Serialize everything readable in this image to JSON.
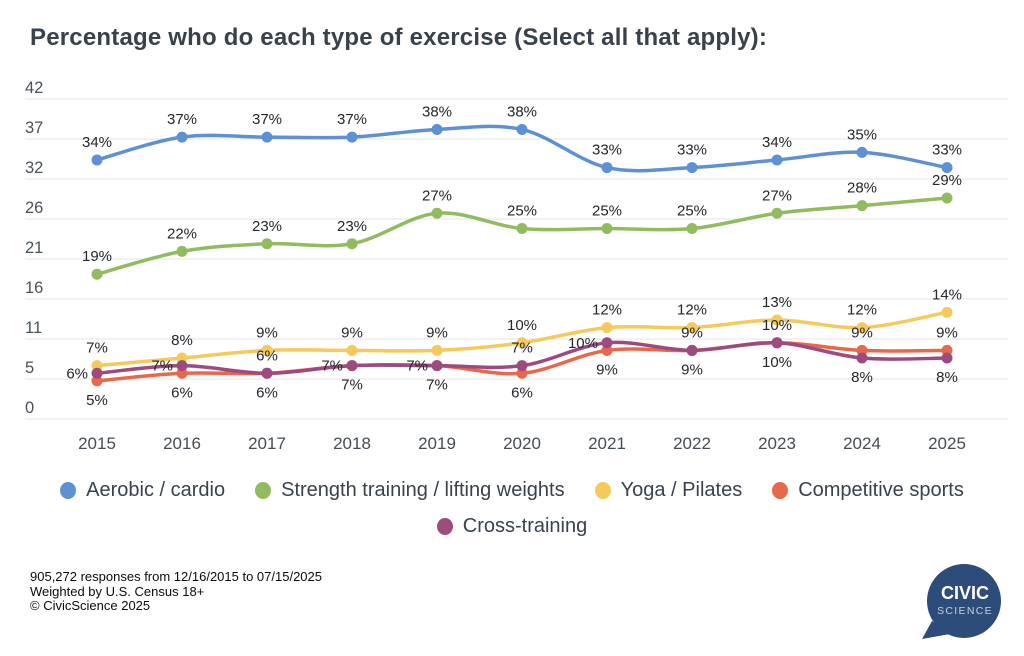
{
  "title": "Percentage who do each type of exercise (Select all that apply):",
  "footer": {
    "line1": "905,272 responses from 12/16/2015 to 07/15/2025",
    "line2": "Weighted by U.S. Census 18+",
    "line3": "© CivicScience 2025"
  },
  "logo": {
    "line1": "CIVIC",
    "line2": "SCIENCE",
    "color": "#2d4c7a",
    "name": "civicscience-logo"
  },
  "colors": {
    "grid": "#e4e6e8",
    "tick_text": "#49525c",
    "data_label": "#23272b",
    "background": "#ffffff"
  },
  "chart_data": {
    "type": "line",
    "title": "Percentage who do each type of exercise (Select all that apply):",
    "x_categories": [
      "2015",
      "2016",
      "2017",
      "2018",
      "2019",
      "2020",
      "2021",
      "2022",
      "2023",
      "2024",
      "2025"
    ],
    "y_ticks": [
      {
        "label": "42",
        "value": 42
      },
      {
        "label": "37",
        "value": 36.75
      },
      {
        "label": "32",
        "value": 31.5
      },
      {
        "label": "26",
        "value": 26.25
      },
      {
        "label": "21",
        "value": 21
      },
      {
        "label": "16",
        "value": 15.75
      },
      {
        "label": "11",
        "value": 10.5
      },
      {
        "label": "5",
        "value": 5.25
      },
      {
        "label": "0",
        "value": 0
      }
    ],
    "ylim": [
      0,
      42
    ],
    "grid": true,
    "legend_position": "bottom",
    "value_suffix": "%",
    "series": [
      {
        "name": "Aerobic / cardio",
        "slug": "aerobic-cardio",
        "color": "#5e90d6",
        "values": [
          34,
          37,
          37,
          37,
          38,
          38,
          33,
          33,
          34,
          35,
          33
        ],
        "label_placement": [
          "above",
          "above",
          "above",
          "above",
          "above",
          "above",
          "above",
          "above",
          "above",
          "above",
          "above"
        ]
      },
      {
        "name": "Strength training / lifting weights",
        "slug": "strength-training",
        "color": "#90bc5f",
        "values": [
          19,
          22,
          23,
          23,
          27,
          25,
          25,
          25,
          27,
          28,
          29
        ],
        "label_placement": [
          "above",
          "above",
          "above",
          "above",
          "above",
          "above",
          "above",
          "above",
          "above",
          "above",
          "above"
        ]
      },
      {
        "name": "Yoga / Pilates",
        "slug": "yoga-pilates",
        "color": "#f5c95b",
        "values": [
          7,
          8,
          9,
          9,
          9,
          10,
          12,
          12,
          13,
          12,
          14
        ],
        "label_placement": [
          "above",
          "above",
          "above",
          "above",
          "above",
          "above",
          "above",
          "above",
          "above",
          "above",
          "above"
        ]
      },
      {
        "name": "Competitive sports",
        "slug": "competitive-sports",
        "color": "#e8684c",
        "values": [
          5,
          6,
          6,
          7,
          7,
          6,
          9,
          9,
          10,
          9,
          9
        ],
        "label_placement": [
          "below",
          "below",
          "below",
          "below",
          "below",
          "below",
          "below",
          "above",
          "above",
          "above",
          "above"
        ]
      },
      {
        "name": "Cross-training",
        "slug": "cross-training",
        "color": "#9d4b7f",
        "values": [
          6,
          7,
          6,
          7,
          7,
          7,
          10,
          9,
          10,
          8,
          8
        ],
        "label_placement": [
          "left",
          "left",
          "above",
          "left",
          "left",
          "above",
          "left",
          "below",
          "below",
          "below",
          "below"
        ]
      }
    ],
    "legend_rows": [
      [
        0,
        1,
        2,
        3
      ],
      [
        4
      ]
    ]
  }
}
